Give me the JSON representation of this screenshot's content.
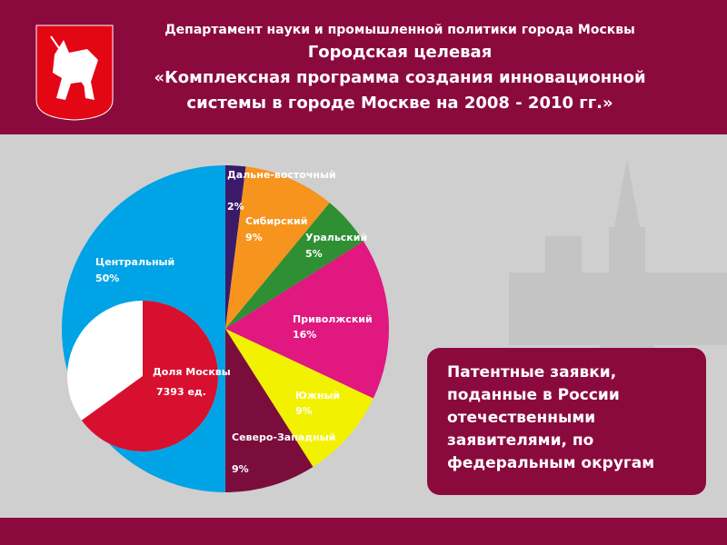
{
  "header": {
    "department": "Департамент науки и промышленной политики города Москвы",
    "title_lines": [
      "Городская целевая",
      "«Комплексная программа создания инновационной",
      "системы в городе Москве на 2008 - 2010 гг.»"
    ]
  },
  "chart_data": {
    "type": "pie",
    "categories": [
      "Дальне-восточный",
      "Сибирский",
      "Уральский",
      "Приволжский",
      "Южный",
      "Северо-Западный",
      "Центральный"
    ],
    "values": [
      2,
      9,
      5,
      16,
      9,
      9,
      50
    ],
    "value_labels": [
      "2%",
      "9%",
      "5%",
      "16%",
      "9%",
      "9%",
      "50%"
    ],
    "colors": [
      "#3b1a6a",
      "#f7941d",
      "#2f8f33",
      "#e0187f",
      "#f2f200",
      "#7b0d3c",
      "#00a3e6"
    ],
    "inset": {
      "label": "Доля Москвы",
      "value_label": "7393 ед.",
      "share": 65,
      "color": "#d7102f"
    }
  },
  "callout": [
    "Патентные заявки,",
    "поданные в России",
    "отечественными",
    "заявителями, по",
    "федеральным округам"
  ]
}
